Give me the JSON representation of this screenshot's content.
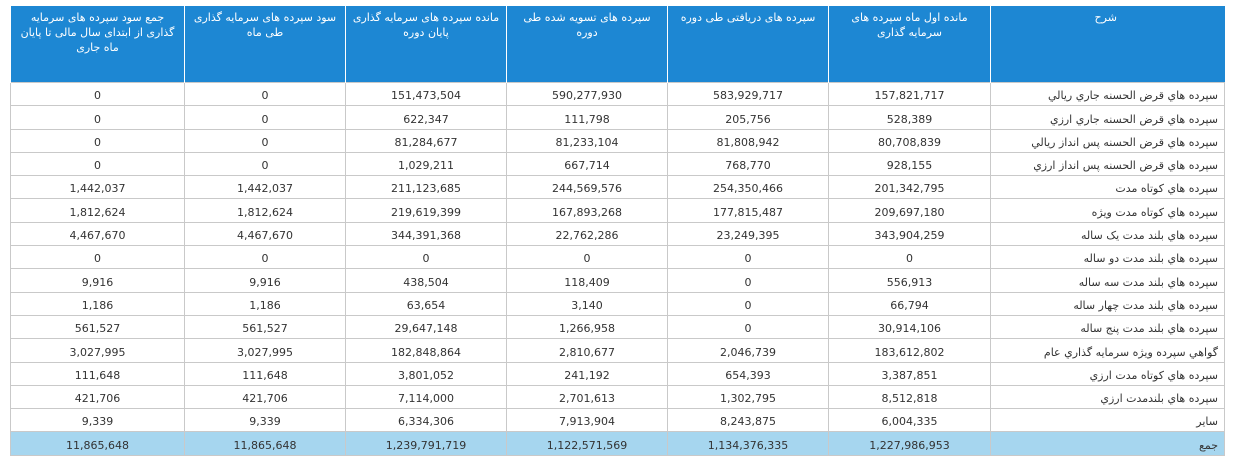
{
  "headers": [
    "شرح",
    "مانده اول ماه سپرده های سرمایه گذاری",
    "سپرده های دریافتی طی دوره",
    "سپرده های تسویه شده طی دوره",
    "مانده سپرده های سرمایه گذاری پایان دوره",
    "سود سپرده های سرمایه گذاری طی ماه",
    "جمع سود سپرده های سرمایه گذاری از ابتدای سال مالی تا پایان ماه جاری"
  ],
  "rows": [
    [
      "سپرده هاي قرض الحسنه جاري ريالي",
      "157,821,717",
      "583,929,717",
      "590,277,930",
      "151,473,504",
      "0",
      "0"
    ],
    [
      "سپرده هاي قرض الحسنه جاري ارزي",
      "528,389",
      "205,756",
      "111,798",
      "622,347",
      "0",
      "0"
    ],
    [
      "سپرده هاي قرض الحسنه پس انداز ريالي",
      "80,708,839",
      "81,808,942",
      "81,233,104",
      "81,284,677",
      "0",
      "0"
    ],
    [
      "سپرده هاي قرض الحسنه پس انداز ارزي",
      "928,155",
      "768,770",
      "667,714",
      "1,029,211",
      "0",
      "0"
    ],
    [
      "سپرده هاي كوتاه مدت",
      "201,342,795",
      "254,350,466",
      "244,569,576",
      "211,123,685",
      "1,442,037",
      "1,442,037"
    ],
    [
      "سپرده هاي كوتاه مدت ويژه",
      "209,697,180",
      "177,815,487",
      "167,893,268",
      "219,619,399",
      "1,812,624",
      "1,812,624"
    ],
    [
      "سپرده هاي بلند مدت يک ساله",
      "343,904,259",
      "23,249,395",
      "22,762,286",
      "344,391,368",
      "4,467,670",
      "4,467,670"
    ],
    [
      "سپرده هاي بلند مدت دو ساله",
      "0",
      "0",
      "0",
      "0",
      "0",
      "0"
    ],
    [
      "سپرده هاي بلند مدت سه ساله",
      "556,913",
      "0",
      "118,409",
      "438,504",
      "9,916",
      "9,916"
    ],
    [
      "سپرده هاي بلند مدت چهار ساله",
      "66,794",
      "0",
      "3,140",
      "63,654",
      "1,186",
      "1,186"
    ],
    [
      "سپرده هاي بلند مدت پنج ساله",
      "30,914,106",
      "0",
      "1,266,958",
      "29,647,148",
      "561,527",
      "561,527"
    ],
    [
      "گواهي سپرده ويژه سرمايه گذاري عام",
      "183,612,802",
      "2,046,739",
      "2,810,677",
      "182,848,864",
      "3,027,995",
      "3,027,995"
    ],
    [
      "سپرده هاي كوتاه مدت ارزي",
      "3,387,851",
      "654,393",
      "241,192",
      "3,801,052",
      "111,648",
      "111,648"
    ],
    [
      "سپرده هاي بلندمدت ارزي",
      "8,512,818",
      "1,302,795",
      "2,701,613",
      "7,114,000",
      "421,706",
      "421,706"
    ],
    [
      "ساير",
      "6,004,335",
      "8,243,875",
      "7,913,904",
      "6,334,306",
      "9,339",
      "9,339"
    ]
  ],
  "total": [
    "جمع",
    "1,227,986,953",
    "1,134,376,335",
    "1,122,571,569",
    "1,239,791,719",
    "11,865,648",
    "11,865,648"
  ],
  "colors": {
    "header_bg": "#1d87d3",
    "total_bg": "#a6d6ef"
  }
}
